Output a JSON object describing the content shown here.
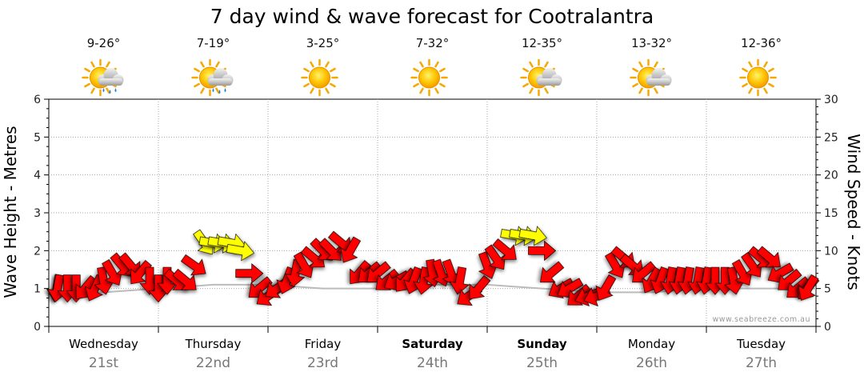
{
  "chart_data": {
    "type": "line",
    "title": "7 day wind & wave forecast for Cootralantra",
    "ylabel": "Wave Height - Metres",
    "y2label": "Wind Speed - Knots",
    "ylim": [
      0,
      6
    ],
    "y2lim": [
      0,
      30
    ],
    "yticks": [
      "0",
      "1",
      "2",
      "3",
      "4",
      "5",
      "6"
    ],
    "y2ticks": [
      "0",
      "5",
      "10",
      "15",
      "20",
      "25",
      "30"
    ],
    "credit": "www.seabreeze.com.au",
    "days": [
      {
        "name": "Wednesday",
        "date": "21st",
        "bold": false,
        "temp": "9-26°",
        "weather": "sun-cloud-rain"
      },
      {
        "name": "Thursday",
        "date": "22nd",
        "bold": false,
        "temp": "7-19°",
        "weather": "sun-cloud-rain"
      },
      {
        "name": "Friday",
        "date": "23rd",
        "bold": false,
        "temp": "3-25°",
        "weather": "sun"
      },
      {
        "name": "Saturday",
        "date": "24th",
        "bold": true,
        "temp": "7-32°",
        "weather": "sun"
      },
      {
        "name": "Sunday",
        "date": "25th",
        "bold": true,
        "temp": "12-35°",
        "weather": "sun-cloud"
      },
      {
        "name": "Monday",
        "date": "26th",
        "bold": false,
        "temp": "13-32°",
        "weather": "sun-cloud"
      },
      {
        "name": "Tuesday",
        "date": "27th",
        "bold": false,
        "temp": "12-36°",
        "weather": "sun"
      }
    ],
    "wave_series": {
      "name": "Wave Height",
      "x_days": [
        0,
        0.5,
        1,
        1.5,
        2,
        2.5,
        3,
        3.5,
        4,
        4.5,
        5,
        5.5,
        6,
        6.5,
        7
      ],
      "values": [
        0.9,
        0.9,
        1.0,
        1.1,
        1.1,
        1.0,
        1.0,
        1.1,
        1.1,
        1.0,
        0.9,
        0.9,
        1.0,
        1.0,
        1.0
      ]
    },
    "wind_series": {
      "name": "Wind Speed (knots)",
      "x_days": [
        0.0,
        0.08,
        0.17,
        0.25,
        0.33,
        0.42,
        0.5,
        0.58,
        0.67,
        0.75,
        0.83,
        0.92,
        1.0,
        1.08,
        1.17,
        1.25,
        1.33,
        1.42,
        1.5,
        1.58,
        1.67,
        1.75,
        1.83,
        1.92,
        2.0,
        2.08,
        2.17,
        2.25,
        2.33,
        2.42,
        2.5,
        2.58,
        2.67,
        2.75,
        2.83,
        2.92,
        3.0,
        3.08,
        3.17,
        3.25,
        3.33,
        3.42,
        3.5,
        3.58,
        3.67,
        3.75,
        3.83,
        3.92,
        4.0,
        4.08,
        4.17,
        4.25,
        4.33,
        4.42,
        4.5,
        4.58,
        4.67,
        4.75,
        4.83,
        4.92,
        5.0,
        5.08,
        5.17,
        5.25,
        5.33,
        5.42,
        5.5,
        5.58,
        5.67,
        5.75,
        5.83,
        5.92,
        6.0,
        6.08,
        6.17,
        6.25,
        6.33,
        6.42,
        6.5,
        6.58,
        6.67,
        6.75,
        6.83,
        6.92,
        7.0
      ],
      "values": [
        5,
        5,
        5,
        5,
        5,
        5,
        6,
        7,
        8,
        8,
        7,
        6,
        5,
        6,
        6,
        6,
        8,
        11,
        11,
        11,
        11,
        10,
        7,
        5,
        4,
        5,
        6,
        7,
        8,
        9,
        10,
        10,
        11,
        10,
        7,
        7,
        7,
        6,
        6,
        6,
        6,
        6,
        7,
        7,
        7,
        6,
        4,
        5,
        8,
        9,
        10,
        12,
        12,
        12,
        10,
        7,
        5,
        5,
        4,
        4,
        4,
        5,
        8,
        9,
        8,
        7,
        6,
        6,
        6,
        6,
        6,
        6,
        6,
        6,
        6,
        6,
        7,
        8,
        9,
        9,
        7,
        6,
        5,
        5,
        5
      ],
      "directions_deg": [
        100,
        100,
        90,
        90,
        130,
        115,
        80,
        60,
        50,
        50,
        130,
        90,
        90,
        90,
        40,
        40,
        35,
        55,
        10,
        10,
        10,
        10,
        0,
        140,
        145,
        145,
        110,
        100,
        60,
        40,
        45,
        45,
        40,
        120,
        130,
        140,
        140,
        140,
        150,
        130,
        110,
        100,
        80,
        70,
        70,
        100,
        145,
        130,
        70,
        55,
        40,
        10,
        10,
        10,
        0,
        140,
        150,
        150,
        140,
        160,
        160,
        120,
        60,
        40,
        40,
        140,
        120,
        110,
        100,
        100,
        100,
        100,
        100,
        90,
        90,
        80,
        60,
        55,
        40,
        40,
        150,
        140,
        140,
        130,
        120
      ],
      "colors": [
        "red",
        "red",
        "red",
        "red",
        "red",
        "red",
        "red",
        "red",
        "red",
        "red",
        "red",
        "red",
        "red",
        "red",
        "red",
        "red",
        "red",
        "yellow",
        "yellow",
        "yellow",
        "yellow",
        "yellow",
        "red",
        "red",
        "red",
        "red",
        "red",
        "red",
        "red",
        "red",
        "red",
        "red",
        "red",
        "red",
        "red",
        "red",
        "red",
        "red",
        "red",
        "red",
        "red",
        "red",
        "red",
        "red",
        "red",
        "red",
        "red",
        "red",
        "red",
        "red",
        "red",
        "yellow",
        "yellow",
        "yellow",
        "red",
        "red",
        "red",
        "red",
        "red",
        "red",
        "red",
        "red",
        "red",
        "red",
        "red",
        "red",
        "red",
        "red",
        "red",
        "red",
        "red",
        "red",
        "red",
        "red",
        "red",
        "red",
        "red",
        "red",
        "red",
        "red",
        "red",
        "red",
        "red",
        "red",
        "red"
      ]
    },
    "colors": {
      "arrow_red": "#ff0000",
      "arrow_yellow": "#ffff00",
      "wave_line": "#bbbbbb",
      "grid": "#aaaaaa"
    }
  }
}
